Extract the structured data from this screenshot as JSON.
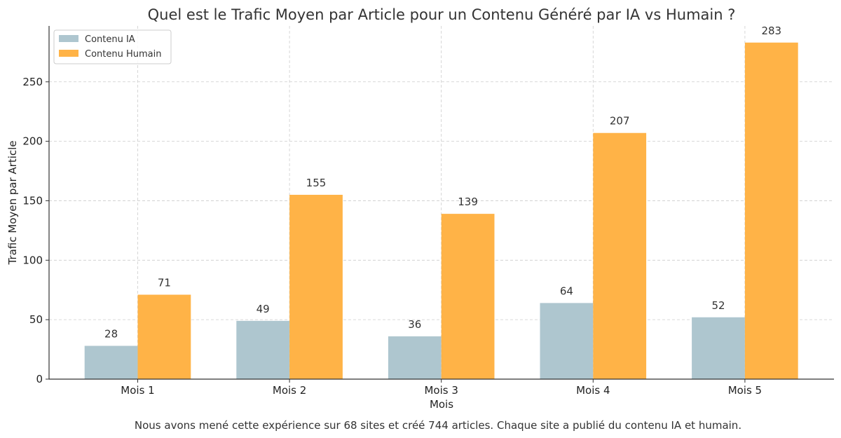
{
  "chart_data": {
    "type": "bar",
    "title": "Quel est le Trafic Moyen par Article pour un Contenu Généré par IA vs Humain ?",
    "xlabel": "Mois",
    "ylabel": "Trafic Moyen par Article",
    "categories": [
      "Mois 1",
      "Mois 2",
      "Mois 3",
      "Mois 4",
      "Mois 5"
    ],
    "series": [
      {
        "name": "Contenu IA",
        "values": [
          28,
          49,
          36,
          64,
          52
        ],
        "color": "#aec6cf"
      },
      {
        "name": "Contenu Humain",
        "values": [
          71,
          155,
          139,
          207,
          283
        ],
        "color": "#ffb347"
      }
    ],
    "ylim": [
      0,
      297
    ],
    "yticks": [
      0,
      50,
      100,
      150,
      200,
      250
    ],
    "grid": true,
    "legend_position": "top-left"
  },
  "caption": "Nous avons mené cette expérience sur 68 sites et créé 744 articles. Chaque site a publié du contenu IA et humain."
}
